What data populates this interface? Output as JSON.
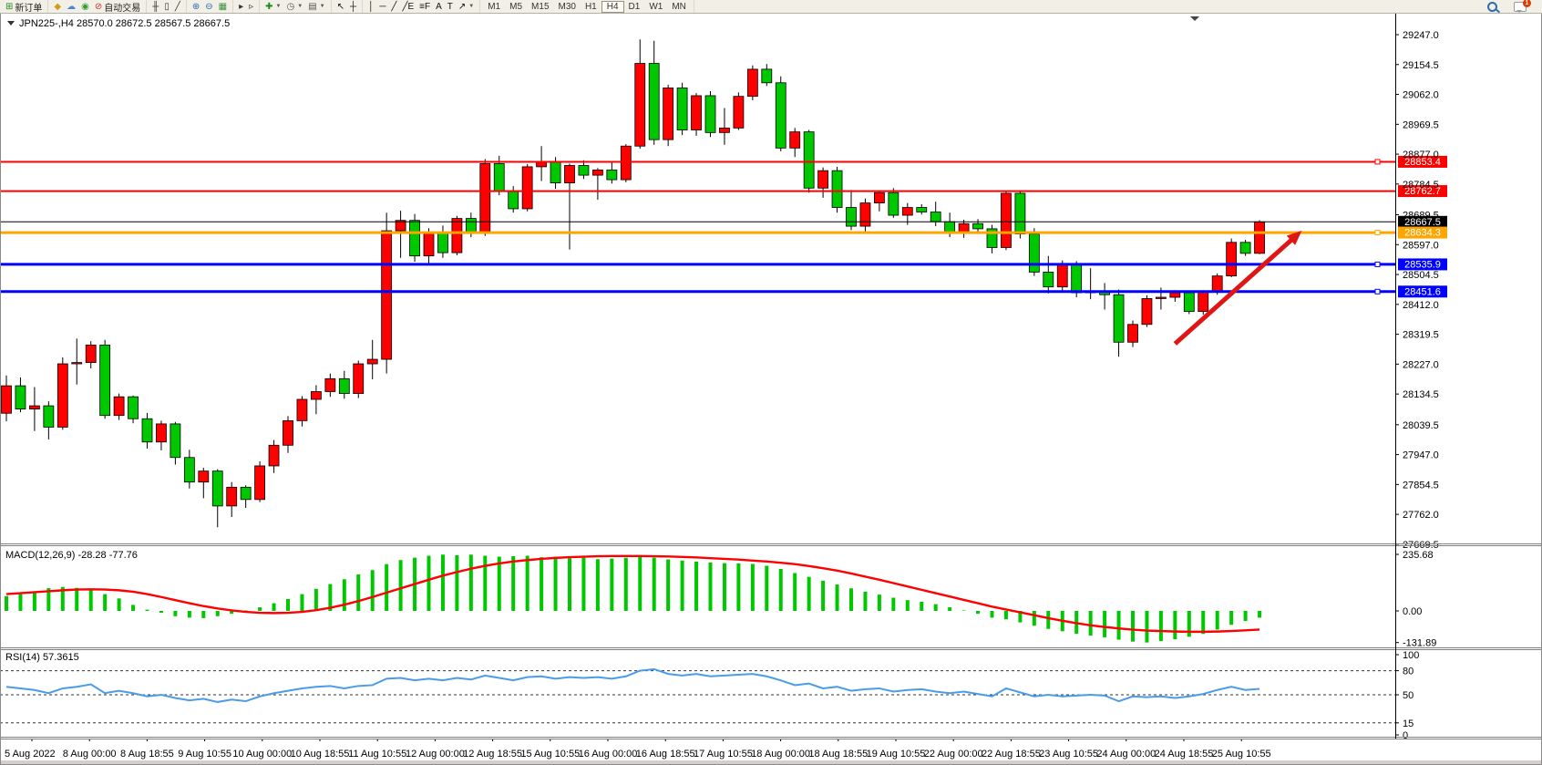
{
  "toolbar": {
    "groups": [
      {
        "items": [
          {
            "name": "new-order",
            "icon": "⊞",
            "icon_color": "#1e8a1e",
            "label": "新订单"
          }
        ]
      },
      {
        "items": [
          {
            "name": "market",
            "icon": "◆",
            "icon_color": "#d49a1a"
          },
          {
            "name": "community",
            "icon": "☁",
            "icon_color": "#4f86d0"
          },
          {
            "name": "signals",
            "icon": "◉",
            "icon_color": "#2f9e2f"
          },
          {
            "name": "autotrading",
            "icon": "⊘",
            "icon_color": "#c43333",
            "label": "自动交易"
          }
        ]
      },
      {
        "items": [
          {
            "name": "chart-bars",
            "icon": "╫",
            "icon_color": "#333333"
          },
          {
            "name": "chart-candles",
            "icon": "▯",
            "icon_color": "#333333"
          },
          {
            "name": "chart-line",
            "icon": "╱",
            "icon_color": "#333333"
          }
        ]
      },
      {
        "items": [
          {
            "name": "zoom-in",
            "icon": "⊕",
            "icon_color": "#2f6bb0"
          },
          {
            "name": "zoom-out",
            "icon": "⊖",
            "icon_color": "#2f6bb0"
          },
          {
            "name": "tile-windows",
            "icon": "▦",
            "icon_color": "#3f8f3f"
          }
        ]
      },
      {
        "items": [
          {
            "name": "auto-scroll",
            "icon": "▸",
            "icon_color": "#333333"
          },
          {
            "name": "chart-shift",
            "icon": "▹",
            "icon_color": "#333333"
          }
        ]
      },
      {
        "items": [
          {
            "name": "indicators",
            "icon": "✚",
            "icon_color": "#1e8a1e",
            "dropdown": true
          },
          {
            "name": "periods",
            "icon": "◷",
            "icon_color": "#555555",
            "dropdown": true
          },
          {
            "name": "templates",
            "icon": "▤",
            "icon_color": "#555555",
            "dropdown": true
          }
        ]
      },
      {
        "items": [
          {
            "name": "cursor",
            "icon": "↖",
            "icon_color": "#111111"
          },
          {
            "name": "crosshair",
            "icon": "┼",
            "icon_color": "#111111"
          }
        ]
      },
      {
        "items": [
          {
            "name": "vertical-line",
            "icon": "│",
            "icon_color": "#111111"
          },
          {
            "name": "horizontal-line",
            "icon": "─",
            "icon_color": "#111111"
          },
          {
            "name": "trendline",
            "icon": "╱",
            "icon_color": "#111111"
          },
          {
            "name": "equidistant-channel",
            "icon": "╱E",
            "icon_color": "#111111"
          },
          {
            "name": "fibonacci",
            "icon": "≡F",
            "icon_color": "#111111"
          },
          {
            "name": "text",
            "icon": "A",
            "icon_color": "#111111"
          },
          {
            "name": "text-label",
            "icon": "T",
            "icon_color": "#111111"
          },
          {
            "name": "arrows-tool",
            "icon": "↗",
            "icon_color": "#111111",
            "dropdown": true
          }
        ]
      }
    ],
    "timeframes": [
      "M1",
      "M5",
      "M15",
      "M30",
      "H1",
      "H4",
      "D1",
      "W1",
      "MN"
    ],
    "active_timeframe": "H4",
    "right": {
      "search": {
        "name": "search"
      },
      "chat": {
        "name": "chat",
        "badge": "1"
      }
    }
  },
  "chart": {
    "symbol": "JPN225-",
    "period": "H4",
    "title_display": "JPN225-,H4  28570.0 28672.5 28567.5 28667.5",
    "ohlc": {
      "open": 28570.0,
      "high": 28672.5,
      "low": 28567.5,
      "close": 28667.5
    }
  },
  "chart_data": {
    "type": "candlestick",
    "title": "JPN225-,H4",
    "bull_color": "#ff0000",
    "bear_color": "#00c800",
    "wick_color": "#000000",
    "price_axis_ticks": [
      "29247.0",
      "29154.5",
      "29062.0",
      "28969.5",
      "28877.0",
      "28784.5",
      "28689.5",
      "28597.0",
      "28504.5",
      "28412.0",
      "28319.5",
      "28227.0",
      "28134.5",
      "28039.5",
      "27947.0",
      "27854.5",
      "27762.0",
      "27669.5"
    ],
    "time_axis_labels": [
      "5 Aug 2022",
      "8 Aug 00:00",
      "8 Aug 18:55",
      "9 Aug 10:55",
      "10 Aug 00:00",
      "10 Aug 18:55",
      "11 Aug 10:55",
      "12 Aug 00:00",
      "12 Aug 18:55",
      "15 Aug 10:55",
      "16 Aug 00:00",
      "16 Aug 18:55",
      "17 Aug 10:55",
      "18 Aug 00:00",
      "18 Aug 18:55",
      "19 Aug 10:55",
      "22 Aug 00:00",
      "22 Aug 18:55",
      "23 Aug 10:55",
      "24 Aug 00:00",
      "24 Aug 18:55",
      "25 Aug 10:55"
    ],
    "horizontal_lines": [
      {
        "price": 28853.4,
        "label": "28853.4",
        "color": "#ff0000",
        "width": 2,
        "handle": true
      },
      {
        "price": 28762.7,
        "label": "28762.7",
        "color": "#ff0000",
        "width": 2,
        "handle": false
      },
      {
        "price": 28667.5,
        "label": "28667.5",
        "color": "#000000",
        "width": 1,
        "handle": false
      },
      {
        "price": 28634.3,
        "label": "28634.3",
        "color": "#ffa500",
        "width": 3,
        "handle": true
      },
      {
        "price": 28535.9,
        "label": "28535.9",
        "color": "#0000ff",
        "width": 3,
        "handle": true
      },
      {
        "price": 28451.6,
        "label": "28451.6",
        "color": "#0000ff",
        "width": 3,
        "handle": true
      }
    ],
    "candles": [
      [
        28075,
        28192,
        28050,
        28160
      ],
      [
        28160,
        28186,
        28078,
        28088
      ],
      [
        28088,
        28156,
        28020,
        28098
      ],
      [
        28098,
        28112,
        27994,
        28032
      ],
      [
        28032,
        28248,
        28024,
        28228
      ],
      [
        28228,
        28306,
        28164,
        28232
      ],
      [
        28232,
        28298,
        28214,
        28286
      ],
      [
        28286,
        28302,
        28058,
        28068
      ],
      [
        28068,
        28136,
        28054,
        28126
      ],
      [
        28126,
        28130,
        28044,
        28058
      ],
      [
        28058,
        28076,
        27966,
        27986
      ],
      [
        27986,
        28052,
        27960,
        28042
      ],
      [
        28042,
        28048,
        27916,
        27938
      ],
      [
        27938,
        27962,
        27842,
        27862
      ],
      [
        27862,
        27906,
        27812,
        27896
      ],
      [
        27896,
        27902,
        27722,
        27788
      ],
      [
        27788,
        27862,
        27754,
        27846
      ],
      [
        27846,
        27852,
        27782,
        27808
      ],
      [
        27808,
        27926,
        27800,
        27912
      ],
      [
        27912,
        27992,
        27890,
        27976
      ],
      [
        27976,
        28066,
        27952,
        28052
      ],
      [
        28052,
        28128,
        28034,
        28118
      ],
      [
        28118,
        28162,
        28072,
        28142
      ],
      [
        28142,
        28198,
        28126,
        28182
      ],
      [
        28182,
        28206,
        28120,
        28136
      ],
      [
        28136,
        28238,
        28122,
        28228
      ],
      [
        28228,
        28302,
        28180,
        28242
      ],
      [
        28242,
        28696,
        28198,
        28640
      ],
      [
        28640,
        28702,
        28556,
        28672
      ],
      [
        28672,
        28692,
        28544,
        28562
      ],
      [
        28562,
        28648,
        28536,
        28636
      ],
      [
        28636,
        28656,
        28556,
        28572
      ],
      [
        28572,
        28686,
        28564,
        28678
      ],
      [
        28678,
        28696,
        28620,
        28632
      ],
      [
        28632,
        28862,
        28624,
        28848
      ],
      [
        28848,
        28872,
        28750,
        28762
      ],
      [
        28762,
        28778,
        28696,
        28708
      ],
      [
        28708,
        28846,
        28700,
        28838
      ],
      [
        28838,
        28902,
        28794,
        28852
      ],
      [
        28852,
        28868,
        28770,
        28788
      ],
      [
        28788,
        28848,
        28582,
        28842
      ],
      [
        28842,
        28858,
        28800,
        28812
      ],
      [
        28812,
        28834,
        28736,
        28828
      ],
      [
        28828,
        28852,
        28786,
        28798
      ],
      [
        28798,
        28908,
        28790,
        28902
      ],
      [
        28902,
        29232,
        28894,
        29158
      ],
      [
        29158,
        29228,
        28906,
        28922
      ],
      [
        28922,
        29092,
        28902,
        29082
      ],
      [
        29082,
        29098,
        28936,
        28952
      ],
      [
        28952,
        29066,
        28934,
        29058
      ],
      [
        29058,
        29072,
        28930,
        28944
      ],
      [
        28944,
        29020,
        28906,
        28958
      ],
      [
        28958,
        29068,
        28952,
        29056
      ],
      [
        29056,
        29152,
        29044,
        29140
      ],
      [
        29140,
        29156,
        29088,
        29098
      ],
      [
        29098,
        29118,
        28886,
        28896
      ],
      [
        28896,
        28958,
        28868,
        28946
      ],
      [
        28946,
        28952,
        28758,
        28772
      ],
      [
        28772,
        28836,
        28742,
        28826
      ],
      [
        28826,
        28838,
        28696,
        28712
      ],
      [
        28712,
        28766,
        28642,
        28654
      ],
      [
        28654,
        28740,
        28636,
        28726
      ],
      [
        28726,
        28764,
        28700,
        28758
      ],
      [
        28758,
        28772,
        28680,
        28688
      ],
      [
        28688,
        28726,
        28658,
        28712
      ],
      [
        28712,
        28722,
        28690,
        28698
      ],
      [
        28698,
        28730,
        28654,
        28668
      ],
      [
        28668,
        28696,
        28620,
        28636
      ],
      [
        28636,
        28674,
        28618,
        28662
      ],
      [
        28662,
        28676,
        28630,
        28646
      ],
      [
        28646,
        28658,
        28570,
        28588
      ],
      [
        28588,
        28762,
        28580,
        28756
      ],
      [
        28756,
        28764,
        28616,
        28630
      ],
      [
        28630,
        28648,
        28500,
        28512
      ],
      [
        28512,
        28562,
        28446,
        28466
      ],
      [
        28466,
        28548,
        28452,
        28538
      ],
      [
        28538,
        28546,
        28434,
        28448
      ],
      [
        28448,
        28524,
        28428,
        28452
      ],
      [
        28452,
        28478,
        28396,
        28442
      ],
      [
        28442,
        28458,
        28250,
        28295
      ],
      [
        28295,
        28362,
        28280,
        28350
      ],
      [
        28350,
        28440,
        28342,
        28430
      ],
      [
        28430,
        28464,
        28396,
        28434
      ],
      [
        28434,
        28456,
        28420,
        28448
      ],
      [
        28448,
        28452,
        28382,
        28390
      ],
      [
        28390,
        28456,
        28380,
        28450
      ],
      [
        28450,
        28508,
        28442,
        28500
      ],
      [
        28500,
        28616,
        28496,
        28604
      ],
      [
        28604,
        28612,
        28562,
        28570
      ],
      [
        28570,
        28672.5,
        28567.5,
        28667.5
      ]
    ],
    "indicators": {
      "macd": {
        "label": "MACD(12,26,9)",
        "display": "MACD(12,26,9) -28.28 -77.76",
        "main_value": -28.28,
        "signal_value": -77.76,
        "axis_tick_labels": [
          "235.68",
          "0.00",
          "-131.89"
        ],
        "axis_tick_values": [
          235.68,
          0,
          -131.89
        ],
        "histogram_color": "#00c800",
        "signal_color": "#ff0000",
        "histogram": [
          62,
          70,
          78,
          95,
          100,
          96,
          88,
          70,
          52,
          25,
          5,
          -8,
          -22,
          -28,
          -30,
          -22,
          -12,
          2,
          15,
          32,
          50,
          70,
          92,
          112,
          132,
          152,
          170,
          195,
          212,
          222,
          230,
          235,
          232,
          235,
          230,
          226,
          228,
          230,
          224,
          226,
          220,
          222,
          216,
          218,
          222,
          228,
          222,
          215,
          210,
          206,
          202,
          199,
          198,
          196,
          188,
          175,
          158,
          142,
          126,
          110,
          94,
          80,
          68,
          55,
          45,
          38,
          28,
          15,
          2,
          -12,
          -28,
          -35,
          -48,
          -62,
          -75,
          -85,
          -95,
          -103,
          -110,
          -120,
          -128,
          -131.89,
          -126,
          -118,
          -108,
          -96,
          -78,
          -58,
          -42,
          -28.28
        ],
        "signal": [
          70,
          74,
          78,
          82,
          86,
          89,
          90,
          89,
          86,
          80,
          70,
          58,
          45,
          32,
          20,
          10,
          2,
          -4,
          -8,
          -9,
          -8,
          -4,
          3,
          13,
          26,
          41,
          58,
          76,
          94,
          112,
          130,
          147,
          162,
          176,
          188,
          198,
          206,
          212,
          217,
          221,
          224,
          226,
          228,
          229,
          229,
          229,
          228,
          227,
          225,
          223,
          220,
          217,
          214,
          210,
          206,
          201,
          195,
          187,
          178,
          168,
          156,
          143,
          130,
          116,
          102,
          88,
          74,
          60,
          46,
          32,
          18,
          6,
          -6,
          -18,
          -30,
          -41,
          -51,
          -60,
          -67,
          -73,
          -78,
          -82,
          -84,
          -86,
          -87,
          -87,
          -86,
          -84,
          -81,
          -77.76
        ]
      },
      "rsi": {
        "label": "RSI(14)",
        "display": "RSI(14) 57.3615",
        "value": 57.3615,
        "axis_tick_labels": [
          "100",
          "80",
          "50",
          "15",
          "0"
        ],
        "axis_tick_values": [
          100,
          80,
          50,
          15,
          0
        ],
        "levels": [
          80,
          50,
          15
        ],
        "line_color": "#4a9ce8",
        "series": [
          60,
          58,
          56,
          52,
          58,
          60,
          63,
          52,
          55,
          52,
          48,
          50,
          46,
          43,
          45,
          41,
          44,
          42,
          48,
          52,
          55,
          58,
          60,
          61,
          58,
          61,
          62,
          70,
          71,
          68,
          70,
          68,
          71,
          69,
          74,
          71,
          68,
          72,
          73,
          70,
          72,
          71,
          72,
          70,
          73,
          80,
          82,
          76,
          74,
          76,
          73,
          74,
          75,
          76,
          73,
          68,
          62,
          64,
          58,
          60,
          55,
          57,
          58,
          54,
          56,
          57,
          54,
          52,
          54,
          51,
          48,
          58,
          53,
          48,
          50,
          48,
          49,
          50,
          49,
          42,
          48,
          47,
          48,
          46,
          48,
          51,
          56,
          60,
          56,
          57.36
        ]
      }
    },
    "annotations": [
      {
        "type": "arrow",
        "color": "#e01616",
        "from_bar": 83,
        "from_price": 28290,
        "to_bar": 92,
        "to_price": 28640
      }
    ]
  }
}
